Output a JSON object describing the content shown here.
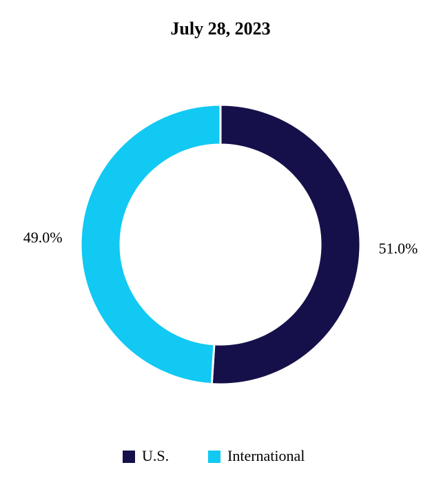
{
  "chart_data": {
    "type": "donut",
    "title": "July 28, 2023",
    "categories": [
      "U.S.",
      "International"
    ],
    "values": [
      51.0,
      49.0
    ],
    "value_labels": [
      "51.0%",
      "49.0%"
    ],
    "colors": [
      "#16104a",
      "#11c9f3"
    ]
  }
}
